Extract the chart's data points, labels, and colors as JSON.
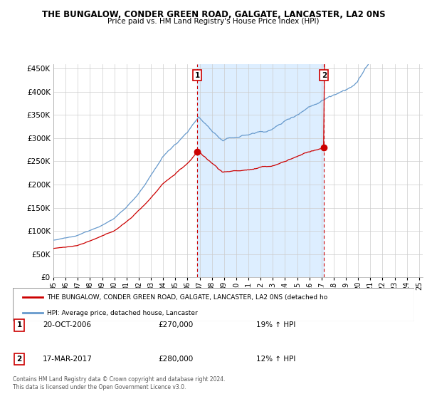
{
  "title": "THE BUNGALOW, CONDER GREEN ROAD, GALGATE, LANCASTER, LA2 0NS",
  "subtitle": "Price paid vs. HM Land Registry's House Price Index (HPI)",
  "ylim": [
    0,
    460000
  ],
  "yticks": [
    0,
    50000,
    100000,
    150000,
    200000,
    250000,
    300000,
    350000,
    400000,
    450000
  ],
  "ytick_labels": [
    "£0",
    "£50K",
    "£100K",
    "£150K",
    "£200K",
    "£250K",
    "£300K",
    "£350K",
    "£400K",
    "£450K"
  ],
  "year_start": 1995,
  "year_end": 2025,
  "sale1_date": 2006.8,
  "sale1_price": 270000,
  "sale2_date": 2017.2,
  "sale2_price": 280000,
  "red_line_color": "#cc0000",
  "blue_line_color": "#6699cc",
  "blue_fill_color": "#ddeeff",
  "vline_color": "#cc0000",
  "grid_color": "#cccccc",
  "background_color": "#ffffff",
  "legend_label_red": "THE BUNGALOW, CONDER GREEN ROAD, GALGATE, LANCASTER, LA2 0NS (detached ho",
  "legend_label_blue": "HPI: Average price, detached house, Lancaster",
  "annotation1_date": "20-OCT-2006",
  "annotation1_price": "£270,000",
  "annotation1_hpi": "19% ↑ HPI",
  "annotation2_date": "17-MAR-2017",
  "annotation2_price": "£280,000",
  "annotation2_hpi": "12% ↑ HPI",
  "footnote": "Contains HM Land Registry data © Crown copyright and database right 2024.\nThis data is licensed under the Open Government Licence v3.0."
}
